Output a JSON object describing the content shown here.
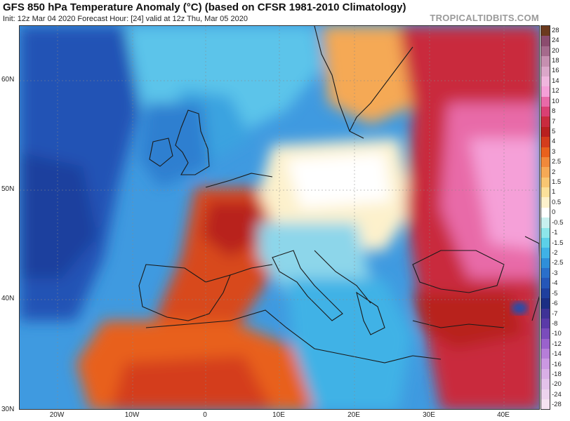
{
  "header": {
    "title": "GFS 850 hPa Temperature Anomaly (°C) (based on CFSR 1981-2010 Climatology)",
    "subtitle": "Init: 12z Mar 04 2020   Forecast Hour: [24]   valid at 12z Thu, Mar 05 2020",
    "brand": "TROPICALTIDBITS.COM"
  },
  "axes": {
    "lat_labels": [
      "60N",
      "50N",
      "40N",
      "30N"
    ],
    "lon_labels": [
      "20W",
      "10W",
      "0",
      "10E",
      "20E",
      "30E",
      "40E"
    ]
  },
  "legend": {
    "labels": [
      "28",
      "24",
      "20",
      "18",
      "16",
      "14",
      "12",
      "10",
      "8",
      "7",
      "5",
      "4",
      "3",
      "2.5",
      "2",
      "1.5",
      "1",
      "0.5",
      "0",
      "-0.5",
      "-1",
      "-1.5",
      "-2",
      "-2.5",
      "-3",
      "-4",
      "-5",
      "-6",
      "-7",
      "-8",
      "-10",
      "-12",
      "-14",
      "-16",
      "-18",
      "-20",
      "-24",
      "-28"
    ],
    "colors": [
      "#6b3a1e",
      "#8b4c6e",
      "#a56a8c",
      "#c68fb0",
      "#dba7c9",
      "#f0b6de",
      "#f5a0d8",
      "#e86aa8",
      "#d94073",
      "#c92b3e",
      "#b8201f",
      "#d43c1c",
      "#e8611d",
      "#f0893a",
      "#f5a955",
      "#f8c672",
      "#fbe09a",
      "#fdf1cc",
      "#ffffff",
      "#c8f0ef",
      "#8de6ea",
      "#5cd0e8",
      "#3fb2e6",
      "#2f8fd9",
      "#2a6fca",
      "#2556b8",
      "#1f3f9e",
      "#1b2e84",
      "#3e3296",
      "#5a3aa8",
      "#7a4cbc",
      "#9a62cc",
      "#b67ed8",
      "#cb98e2",
      "#d9afe6",
      "#e3c2ea",
      "#edd3ee",
      "#f5e2f0"
    ]
  }
}
